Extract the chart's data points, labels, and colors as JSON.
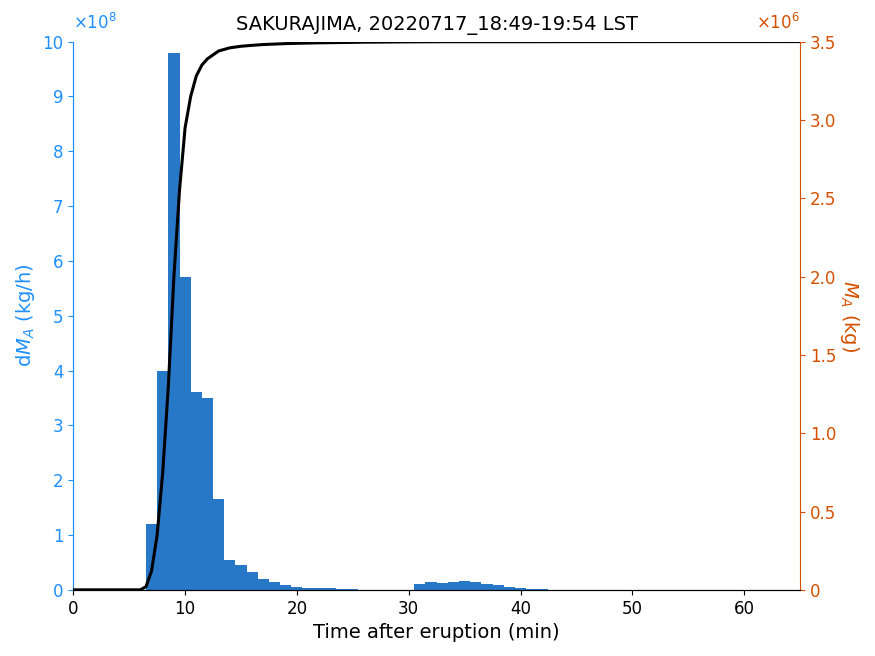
{
  "title": "SAKURAJIMA, 20220717_18:49-19:54 LST",
  "xlabel": "Time after eruption (min)",
  "ylabel_left": "dM$_A$ (kg/h)",
  "ylabel_right": "M$_A$ (kg)",
  "bar_color": "#2878c8",
  "line_color": "#000000",
  "left_axis_color": "#1E90FF",
  "right_axis_color": "#D45000",
  "bar_width": 1.0,
  "xlim": [
    0,
    65
  ],
  "ylim_left": [
    0,
    1000000000.0
  ],
  "ylim_right": [
    0,
    3500000.0
  ],
  "bar_centers": [
    7,
    8,
    9,
    10,
    11,
    12,
    13,
    14,
    15,
    16,
    17,
    18,
    19,
    20,
    21,
    22,
    23,
    24,
    25,
    26,
    27,
    28,
    29,
    30,
    31,
    32,
    33,
    34,
    35,
    36,
    37,
    38,
    39,
    40,
    41,
    42,
    43,
    44,
    45,
    46,
    47,
    48,
    49,
    50,
    51,
    52,
    53,
    54,
    55,
    56,
    57,
    58,
    59,
    60,
    61,
    62,
    63,
    64
  ],
  "bar_heights": [
    120000000.0,
    400000000.0,
    980000000.0,
    570000000.0,
    360000000.0,
    350000000.0,
    165000000.0,
    55000000.0,
    45000000.0,
    32000000.0,
    20000000.0,
    14000000.0,
    8000000.0,
    6000000.0,
    4000000.0,
    3000000.0,
    2500000.0,
    1500000.0,
    800000.0,
    400000.0,
    200000.0,
    100000.0,
    70000.0,
    50000.0,
    11000000.0,
    14000000.0,
    12000000.0,
    15000000.0,
    17000000.0,
    15000000.0,
    10000000.0,
    8000000.0,
    5000000.0,
    3000000.0,
    2000000.0,
    1000000.0,
    500000.0,
    300000.0,
    200000.0,
    100000.0,
    50000.0,
    30000.0,
    20000.0,
    10000.0,
    8000.0,
    6000.0,
    4000.0,
    3000.0,
    2000.0,
    1000.0,
    500.0,
    300.0,
    200.0,
    100.0,
    50.0,
    30.0,
    20.0,
    2
  ],
  "cum_x": [
    0,
    1,
    2,
    3,
    4,
    5,
    6,
    6.5,
    7,
    7.5,
    8,
    8.5,
    9,
    9.5,
    10,
    10.5,
    11,
    11.5,
    12,
    12.5,
    13,
    14,
    15,
    16,
    17,
    18,
    19,
    20,
    22,
    24,
    26,
    28,
    30,
    33,
    36,
    40,
    45,
    50,
    55,
    60,
    65
  ],
  "cum_y": [
    0,
    0,
    0,
    0,
    0,
    0,
    0,
    20000.0,
    120000.0,
    350000.0,
    750000.0,
    1300000.0,
    2000000.0,
    2550000.0,
    2950000.0,
    3150000.0,
    3280000.0,
    3350000.0,
    3390000.0,
    3415000.0,
    3440000.0,
    3460000.0,
    3470000.0,
    3476000.0,
    3481000.0,
    3484000.0,
    3487000.0,
    3489000.0,
    3492000.0,
    3494000.0,
    3496000.0,
    3497000.0,
    3498000.0,
    3499000.0,
    3499000.0,
    3499000.0,
    3499500.0,
    3499700.0,
    3499800.0,
    3499900.0,
    3500000.0
  ],
  "xticks": [
    0,
    10,
    20,
    30,
    40,
    50,
    60
  ],
  "left_yticks": [
    0,
    100000000.0,
    200000000.0,
    300000000.0,
    400000000.0,
    500000000.0,
    600000000.0,
    700000000.0,
    800000000.0,
    900000000.0,
    1000000000.0
  ],
  "right_yticks": [
    0,
    500000.0,
    1000000.0,
    1500000.0,
    2000000.0,
    2500000.0,
    3000000.0,
    3500000.0
  ]
}
